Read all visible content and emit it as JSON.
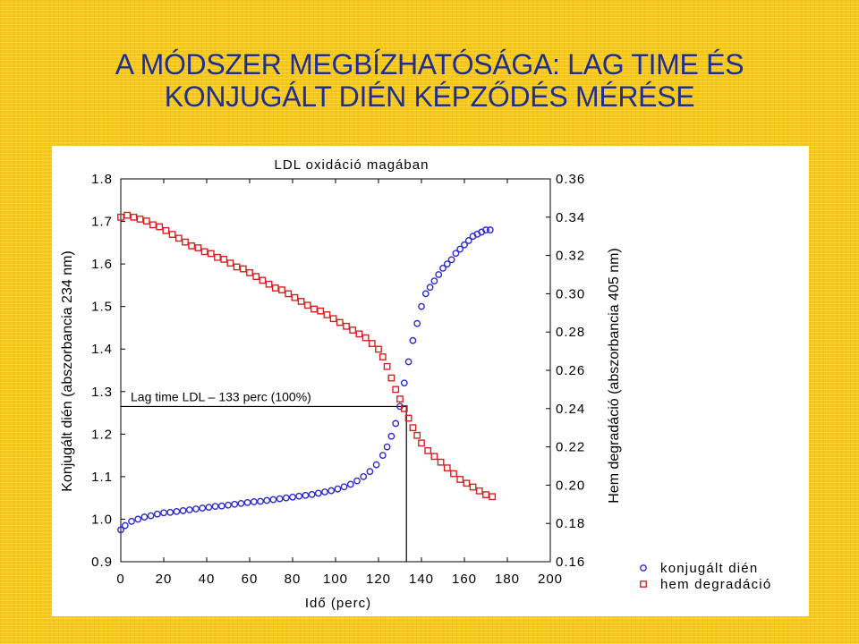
{
  "slide": {
    "title_line1": "A MÓDSZER MEGBÍZHATÓSÁGA: LAG TIME ÉS",
    "title_line2": "KONJUGÁLT DIÉN KÉPZŐDÉS MÉRÉSE"
  },
  "colors": {
    "background": "#f6c81e",
    "title": "#1f2f8f",
    "series_dien": "#2a2ad0",
    "series_hem": "#d82020"
  },
  "chart_data": {
    "type": "scatter",
    "title": "LDL oxidáció magában",
    "xlabel": "Idő (perc)",
    "ylabel_left": "Konjugált dién (abszorbancia 234 nm)",
    "ylabel_right": "Hem degradáció (abszorbancia 405 nm)",
    "xlim": [
      0,
      200
    ],
    "ylim_left": [
      0.9,
      1.8
    ],
    "ylim_right": [
      0.16,
      0.36
    ],
    "x_ticks": [
      "0",
      "20",
      "40",
      "60",
      "80",
      "100",
      "120",
      "140",
      "160",
      "180",
      "200"
    ],
    "y_ticks_left": [
      "0.9",
      "1.0",
      "1.1",
      "1.2",
      "1.3",
      "1.4",
      "1.5",
      "1.6",
      "1.7",
      "1.8"
    ],
    "y_ticks_right": [
      "0.16",
      "0.18",
      "0.20",
      "0.22",
      "0.24",
      "0.26",
      "0.28",
      "0.30",
      "0.32",
      "0.34",
      "0.36"
    ],
    "grid": false,
    "legend_position": "right",
    "annotation": {
      "text": "Lag time LDL – 133 perc (100%)",
      "x": 133,
      "y": 1.265
    },
    "series": [
      {
        "name": "konjugált dién",
        "axis": "left",
        "marker": "circle",
        "color": "#2a2ad0",
        "x": [
          0,
          2,
          5,
          8,
          11,
          14,
          17,
          20,
          23,
          26,
          29,
          32,
          35,
          38,
          41,
          44,
          47,
          50,
          53,
          56,
          59,
          62,
          65,
          68,
          71,
          74,
          77,
          80,
          83,
          86,
          89,
          92,
          95,
          98,
          101,
          104,
          107,
          110,
          113,
          116,
          119,
          122,
          124,
          126,
          128,
          130,
          132,
          134,
          136,
          138,
          140,
          142,
          144,
          146,
          148,
          150,
          152,
          154,
          156,
          158,
          160,
          162,
          164,
          166,
          168,
          170,
          172
        ],
        "y": [
          0.975,
          0.985,
          0.995,
          1.0,
          1.005,
          1.008,
          1.012,
          1.015,
          1.016,
          1.018,
          1.02,
          1.022,
          1.024,
          1.026,
          1.028,
          1.03,
          1.031,
          1.033,
          1.035,
          1.037,
          1.039,
          1.041,
          1.042,
          1.044,
          1.046,
          1.048,
          1.05,
          1.052,
          1.054,
          1.056,
          1.058,
          1.061,
          1.064,
          1.067,
          1.071,
          1.076,
          1.082,
          1.09,
          1.1,
          1.112,
          1.128,
          1.15,
          1.17,
          1.195,
          1.225,
          1.265,
          1.32,
          1.37,
          1.42,
          1.46,
          1.5,
          1.53,
          1.545,
          1.56,
          1.575,
          1.59,
          1.6,
          1.61,
          1.625,
          1.635,
          1.645,
          1.655,
          1.665,
          1.67,
          1.675,
          1.68,
          1.68
        ]
      },
      {
        "name": "hem degradáció",
        "axis": "right",
        "marker": "square",
        "color": "#d82020",
        "x": [
          0,
          3,
          6,
          9,
          12,
          15,
          18,
          21,
          24,
          27,
          30,
          33,
          36,
          39,
          42,
          45,
          48,
          51,
          54,
          57,
          60,
          63,
          66,
          69,
          72,
          75,
          78,
          81,
          84,
          87,
          90,
          93,
          96,
          99,
          102,
          105,
          108,
          111,
          114,
          117,
          120,
          122,
          124,
          126,
          128,
          130,
          132,
          134,
          136,
          138,
          140,
          143,
          146,
          149,
          152,
          155,
          158,
          161,
          164,
          167,
          170,
          173
        ],
        "y": [
          0.34,
          0.341,
          0.34,
          0.339,
          0.338,
          0.336,
          0.335,
          0.333,
          0.331,
          0.329,
          0.327,
          0.325,
          0.324,
          0.322,
          0.321,
          0.319,
          0.318,
          0.316,
          0.314,
          0.313,
          0.311,
          0.309,
          0.307,
          0.305,
          0.303,
          0.302,
          0.3,
          0.298,
          0.296,
          0.294,
          0.292,
          0.291,
          0.289,
          0.287,
          0.285,
          0.283,
          0.281,
          0.279,
          0.277,
          0.274,
          0.271,
          0.267,
          0.262,
          0.256,
          0.25,
          0.245,
          0.24,
          0.235,
          0.23,
          0.226,
          0.222,
          0.218,
          0.215,
          0.212,
          0.209,
          0.206,
          0.203,
          0.201,
          0.199,
          0.197,
          0.195,
          0.194
        ]
      }
    ]
  }
}
